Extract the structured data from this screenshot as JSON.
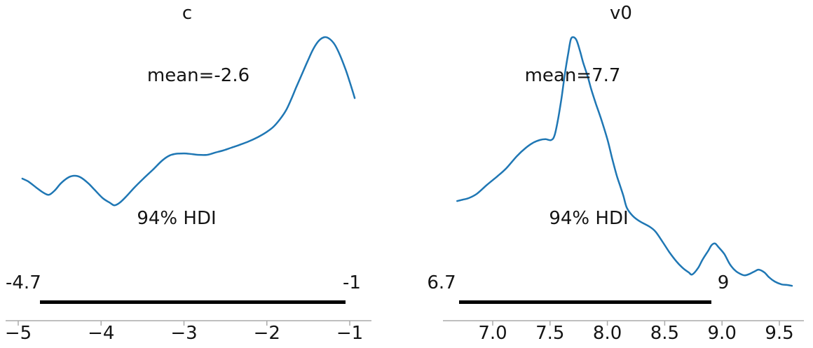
{
  "figure": {
    "background": "#ffffff",
    "line_color": "#1f77b4",
    "axis_color": "#aaaaaa",
    "text_color": "#141414",
    "hdi_bar_color": "#000000"
  },
  "chart_data": [
    {
      "type": "line",
      "subplot": "left",
      "title": "c",
      "mean": -2.6,
      "mean_label": "mean=-2.6",
      "hdi_text": "94% HDI",
      "hdi_probability": 0.94,
      "hdi_lower": -4.7,
      "hdi_upper": -1,
      "hdi_lower_label": "-4.7",
      "hdi_upper_label": "-1",
      "xlabel": "",
      "ylabel": "",
      "grid": false,
      "legend": false,
      "x_ticks": [
        -5,
        -4,
        -3,
        -2,
        -1
      ],
      "x_tick_labels": [
        "−5",
        "−4",
        "−3",
        "−2",
        "−1"
      ],
      "x_range": [
        -5.15,
        -0.75
      ],
      "curve": {
        "x": [
          -4.95,
          -4.88,
          -4.78,
          -4.7,
          -4.63,
          -4.56,
          -4.48,
          -4.39,
          -4.32,
          -4.25,
          -4.16,
          -4.08,
          -3.98,
          -3.89,
          -3.84,
          -3.78,
          -3.7,
          -3.6,
          -3.49,
          -3.38,
          -3.27,
          -3.19,
          -3.11,
          -3.0,
          -2.92,
          -2.83,
          -2.72,
          -2.62,
          -2.53,
          -2.43,
          -2.33,
          -2.22,
          -2.11,
          -2.01,
          -1.92,
          -1.84,
          -1.77,
          -1.71,
          -1.65,
          -1.58,
          -1.51,
          -1.44,
          -1.37,
          -1.3,
          -1.24,
          -1.18,
          -1.12,
          -1.05,
          -1.0,
          -0.96,
          -0.94
        ],
        "y_norm": [
          0.501,
          0.491,
          0.469,
          0.452,
          0.444,
          0.459,
          0.486,
          0.506,
          0.511,
          0.506,
          0.486,
          0.462,
          0.432,
          0.415,
          0.407,
          0.415,
          0.437,
          0.469,
          0.501,
          0.531,
          0.563,
          0.58,
          0.588,
          0.59,
          0.588,
          0.585,
          0.585,
          0.593,
          0.6,
          0.61,
          0.62,
          0.632,
          0.647,
          0.664,
          0.684,
          0.711,
          0.741,
          0.778,
          0.82,
          0.867,
          0.914,
          0.958,
          0.988,
          1.0,
          0.993,
          0.973,
          0.938,
          0.886,
          0.842,
          0.805,
          0.785
        ]
      }
    },
    {
      "type": "line",
      "subplot": "right",
      "title": "v0",
      "mean": 7.7,
      "mean_label": "mean=7.7",
      "hdi_text": "94% HDI",
      "hdi_probability": 0.94,
      "hdi_lower": 6.7,
      "hdi_upper": 9,
      "hdi_lower_label": "6.7",
      "hdi_upper_label": "9",
      "xlabel": "",
      "ylabel": "",
      "grid": false,
      "legend": false,
      "x_ticks": [
        7.0,
        7.5,
        8.0,
        8.5,
        9.0,
        9.5
      ],
      "x_tick_labels": [
        "7.0",
        "7.5",
        "8.0",
        "8.5",
        "9.0",
        "9.5"
      ],
      "x_range": [
        6.55,
        9.75
      ],
      "curve": {
        "x": [
          6.69,
          6.74,
          6.79,
          6.86,
          6.95,
          7.04,
          7.12,
          7.21,
          7.29,
          7.35,
          7.41,
          7.46,
          7.51,
          7.54,
          7.57,
          7.6,
          7.63,
          7.66,
          7.68,
          7.7,
          7.73,
          7.76,
          7.79,
          7.83,
          7.86,
          7.9,
          7.95,
          8.0,
          8.04,
          8.08,
          8.11,
          8.14,
          8.17,
          8.22,
          8.28,
          8.37,
          8.42,
          8.48,
          8.54,
          8.6,
          8.66,
          8.71,
          8.74,
          8.79,
          8.83,
          8.88,
          8.91,
          8.94,
          8.97,
          9.02,
          9.07,
          9.12,
          9.17,
          9.2,
          9.24,
          9.29,
          9.32,
          9.37,
          9.41,
          9.46,
          9.52,
          9.57,
          9.61
        ],
        "y_norm": [
          0.422,
          0.427,
          0.432,
          0.447,
          0.479,
          0.509,
          0.538,
          0.58,
          0.61,
          0.627,
          0.637,
          0.64,
          0.637,
          0.654,
          0.711,
          0.785,
          0.872,
          0.946,
          0.99,
          1.0,
          0.99,
          0.953,
          0.909,
          0.859,
          0.815,
          0.765,
          0.706,
          0.64,
          0.575,
          0.514,
          0.477,
          0.44,
          0.398,
          0.37,
          0.351,
          0.331,
          0.314,
          0.279,
          0.242,
          0.21,
          0.185,
          0.17,
          0.163,
          0.185,
          0.215,
          0.247,
          0.267,
          0.272,
          0.259,
          0.235,
          0.198,
          0.175,
          0.163,
          0.16,
          0.165,
          0.175,
          0.18,
          0.17,
          0.153,
          0.138,
          0.128,
          0.126,
          0.123
        ]
      }
    }
  ]
}
